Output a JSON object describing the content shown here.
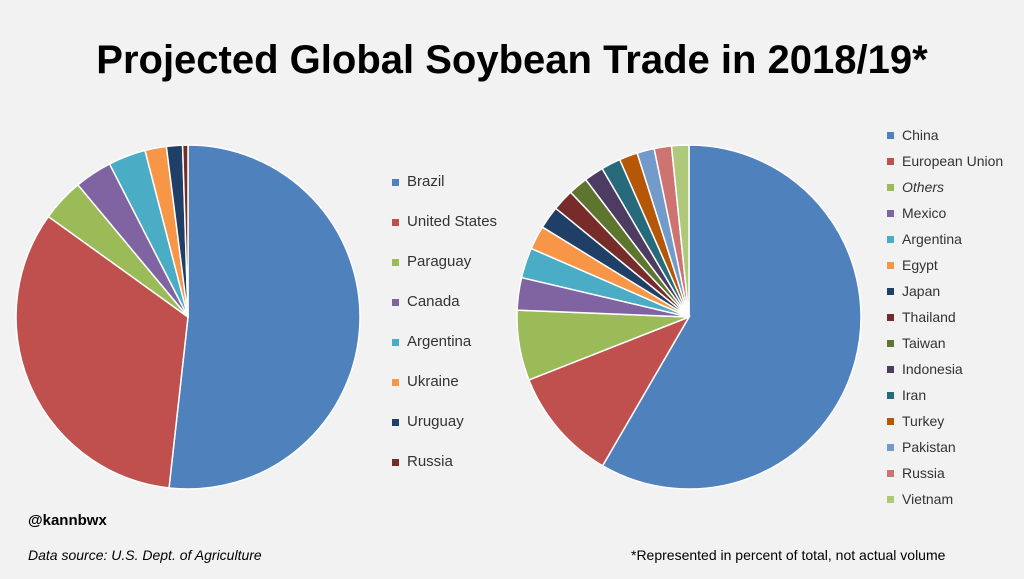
{
  "title": "Projected Global Soybean Trade in 2018/19*",
  "credit": "@kannbwx",
  "source": "Data source: U.S. Dept. of Agriculture",
  "footnote": "*Represented in percent of total, not actual volume",
  "chart_data": [
    {
      "type": "pie",
      "legend_position": "right",
      "slices": [
        {
          "label": "Brazil",
          "value": 51.5,
          "color": "#4f81bd"
        },
        {
          "label": "United States",
          "value": 33.0,
          "color": "#c0504d"
        },
        {
          "label": "Paraguay",
          "value": 4.0,
          "color": "#9bbb59"
        },
        {
          "label": "Canada",
          "value": 3.5,
          "color": "#8064a2"
        },
        {
          "label": "Argentina",
          "value": 3.5,
          "color": "#4bacc6"
        },
        {
          "label": "Ukraine",
          "value": 2.0,
          "color": "#f79646"
        },
        {
          "label": "Uruguay",
          "value": 1.5,
          "color": "#1f3f66"
        },
        {
          "label": "Russia",
          "value": 0.5,
          "color": "#772c2a"
        }
      ]
    },
    {
      "type": "pie",
      "legend_position": "right",
      "slices": [
        {
          "label": "China",
          "value": 57.5,
          "color": "#4f81bd"
        },
        {
          "label": "European Union",
          "value": 10.5,
          "color": "#c0504d"
        },
        {
          "label": "Others",
          "value": 6.5,
          "color": "#9bbb59",
          "italic": true
        },
        {
          "label": "Mexico",
          "value": 3.0,
          "color": "#8064a2"
        },
        {
          "label": "Argentina",
          "value": 2.8,
          "color": "#4bacc6"
        },
        {
          "label": "Egypt",
          "value": 2.2,
          "color": "#f79646"
        },
        {
          "label": "Japan",
          "value": 2.1,
          "color": "#1f3f66"
        },
        {
          "label": "Thailand",
          "value": 2.0,
          "color": "#772c2a"
        },
        {
          "label": "Taiwan",
          "value": 1.8,
          "color": "#5e7530"
        },
        {
          "label": "Indonesia",
          "value": 1.8,
          "color": "#4d3b62"
        },
        {
          "label": "Iran",
          "value": 1.8,
          "color": "#276a7c"
        },
        {
          "label": "Turkey",
          "value": 1.7,
          "color": "#b65708"
        },
        {
          "label": "Pakistan",
          "value": 1.6,
          "color": "#729aca"
        },
        {
          "label": "Russia",
          "value": 1.6,
          "color": "#cd7371"
        },
        {
          "label": "Vietnam",
          "value": 1.6,
          "color": "#afc97a"
        }
      ]
    }
  ]
}
